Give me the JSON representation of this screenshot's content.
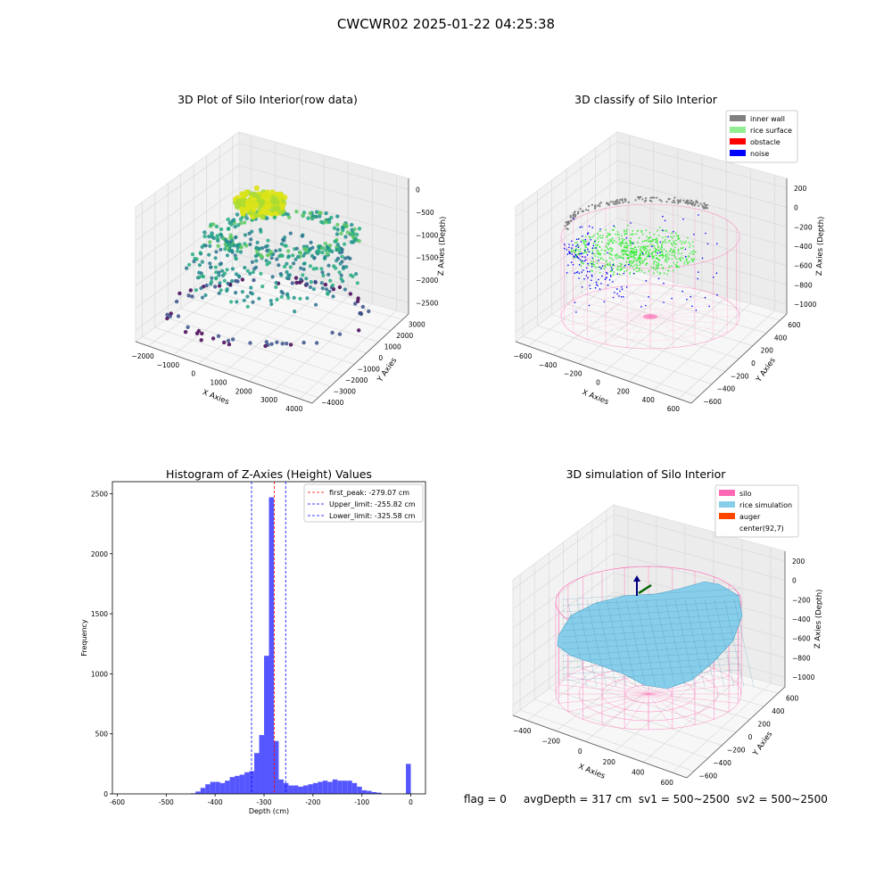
{
  "figure": {
    "suptitle": "CWCWR02 2025-01-22 04:25:38",
    "status": {
      "flag": "flag = 0",
      "avgDepth": "avgDepth = 317 cm",
      "sv1": "sv1 = 500~2500",
      "sv2": "sv2 = 500~2500"
    }
  },
  "colors": {
    "inner_wall": "#808080",
    "rice_surface": "#90ee90",
    "obstacle": "#ff0000",
    "noise": "#0000ff",
    "silo": "#ff69b4",
    "rice_simulation": "#87ceeb",
    "auger": "#ff4500",
    "hist_bar": "#4d4dff",
    "viridis_high": "#dde318",
    "viridis_mid": "#21918c",
    "viridis_low": "#440154"
  },
  "chart_data": [
    {
      "type": "scatter",
      "name": "raw3d",
      "title": "3D Plot of Silo Interior(row data)",
      "xlabel": "X Axies",
      "ylabel": "Y Axies",
      "zlabel": "Z Axies (Depth)",
      "xticks": [
        "−2000",
        "−1000",
        "0",
        "1000",
        "2000",
        "3000",
        "4000"
      ],
      "yticks": [
        "−4000",
        "−3000",
        "−2000",
        "−1000",
        "0",
        "1000",
        "2000",
        "3000"
      ],
      "zticks": [
        "0",
        "−500",
        "−1000",
        "−1500",
        "−2000",
        "−2500"
      ],
      "xlim": [
        -2300,
        4500
      ],
      "ylim": [
        -4200,
        3500
      ],
      "zlim": [
        -2900,
        200
      ],
      "grid": true
    },
    {
      "type": "scatter",
      "name": "classify3d",
      "title": "3D classify of Silo Interior",
      "xlabel": "X Axies",
      "ylabel": "Y Axies",
      "zlabel": "Z Axies (Depth)",
      "xticks": [
        "−600",
        "−400",
        "−200",
        "0",
        "200",
        "400",
        "600"
      ],
      "yticks": [
        "−600",
        "−400",
        "−200",
        "0",
        "200",
        "400",
        "600"
      ],
      "zticks": [
        "200",
        "0",
        "−200",
        "−400",
        "−600",
        "−800",
        "−1000"
      ],
      "xlim": [
        -650,
        650
      ],
      "ylim": [
        -650,
        650
      ],
      "zlim": [
        -1050,
        300
      ],
      "legend": [
        "inner wall",
        "rice surface",
        "obstacle",
        "noise"
      ],
      "legend_loc": "top-right",
      "grid": true
    },
    {
      "type": "bar",
      "name": "histogram",
      "title": "Histogram of Z-Axies (Height) Values",
      "xlabel": "Depth (cm)",
      "ylabel": "Frequency",
      "xlim": [
        -610,
        30
      ],
      "ylim": [
        0,
        2600
      ],
      "xticks": [
        -600,
        -500,
        -400,
        -300,
        -200,
        -100,
        0
      ],
      "yticks": [
        0,
        500,
        1000,
        1500,
        2000,
        2500
      ],
      "bin_width": 10,
      "bins": [
        [
          -450,
          5
        ],
        [
          -440,
          20
        ],
        [
          -430,
          50
        ],
        [
          -420,
          80
        ],
        [
          -410,
          100
        ],
        [
          -400,
          100
        ],
        [
          -390,
          90
        ],
        [
          -380,
          110
        ],
        [
          -370,
          140
        ],
        [
          -360,
          150
        ],
        [
          -350,
          160
        ],
        [
          -340,
          180
        ],
        [
          -330,
          190
        ],
        [
          -320,
          340
        ],
        [
          -310,
          490
        ],
        [
          -300,
          1150
        ],
        [
          -290,
          2470
        ],
        [
          -280,
          440
        ],
        [
          -270,
          120
        ],
        [
          -260,
          90
        ],
        [
          -250,
          70
        ],
        [
          -240,
          70
        ],
        [
          -230,
          60
        ],
        [
          -220,
          70
        ],
        [
          -210,
          80
        ],
        [
          -200,
          90
        ],
        [
          -190,
          100
        ],
        [
          -180,
          110
        ],
        [
          -170,
          100
        ],
        [
          -160,
          120
        ],
        [
          -150,
          110
        ],
        [
          -140,
          110
        ],
        [
          -130,
          110
        ],
        [
          -120,
          90
        ],
        [
          -110,
          60
        ],
        [
          -100,
          30
        ],
        [
          -90,
          25
        ],
        [
          -80,
          15
        ],
        [
          -70,
          10
        ],
        [
          -10,
          250
        ]
      ],
      "vlines": [
        {
          "label": "first_peak: -279.07 cm",
          "x": -279.07,
          "color": "#ff0000"
        },
        {
          "label": "Upper_limit: -255.82 cm",
          "x": -255.82,
          "color": "#0000ff"
        },
        {
          "label": "Lower_limit: -325.58 cm",
          "x": -325.58,
          "color": "#0000ff"
        }
      ],
      "legend_loc": "top-right"
    },
    {
      "type": "area",
      "name": "simulation3d",
      "title": "3D simulation of Silo Interior",
      "xlabel": "X Axies",
      "ylabel": "Y Axies",
      "zlabel": "Z Axies (Depth)",
      "xticks": [
        "−400",
        "−200",
        "0",
        "200",
        "400",
        "600"
      ],
      "yticks": [
        "−600",
        "−400",
        "−200",
        "0",
        "200",
        "400",
        "600"
      ],
      "zticks": [
        "200",
        "0",
        "−200",
        "−400",
        "−600",
        "−800",
        "−1000"
      ],
      "xlim": [
        -550,
        650
      ],
      "ylim": [
        -650,
        650
      ],
      "zlim": [
        -1050,
        300
      ],
      "legend": [
        "silo",
        "rice simulation",
        "auger",
        "center(92,7)"
      ],
      "legend_loc": "top-right",
      "grid": true
    }
  ]
}
